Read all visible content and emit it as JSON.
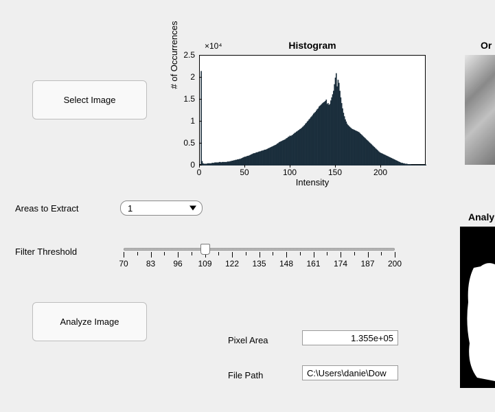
{
  "buttons": {
    "select_image": "Select Image",
    "analyze_image": "Analyze Image"
  },
  "labels": {
    "areas_to_extract": "Areas to Extract",
    "filter_threshold": "Filter Threshold",
    "pixel_area": "Pixel Area",
    "file_path": "File Path"
  },
  "areas_select": {
    "value": "1"
  },
  "filter_slider": {
    "min": 70,
    "max": 200,
    "step_major": 13,
    "value": 109,
    "major_ticks": [
      70,
      83,
      96,
      109,
      122,
      135,
      148,
      161,
      174,
      187,
      200
    ]
  },
  "pixel_area_value": "1.355e+05",
  "file_path_value": "C:\\Users\\danie\\Dow",
  "right_titles": {
    "original": "Or",
    "analyzed": "Analy"
  },
  "histogram": {
    "title": "Histogram",
    "xlabel": "Intensity",
    "ylabel": "# of Occurrences",
    "exponent": "×10⁴",
    "xlim": [
      0,
      250
    ],
    "ylim": [
      0,
      2.5
    ],
    "yticks": [
      0,
      0.5,
      1,
      1.5,
      2,
      2.5
    ],
    "xticks": [
      0,
      50,
      100,
      150,
      200
    ],
    "bar_color": "#1b2e3c",
    "background": "#ffffff",
    "values": [
      0.02,
      2.15,
      0.1,
      0.05,
      0.04,
      0.04,
      0.04,
      0.04,
      0.05,
      0.05,
      0.05,
      0.05,
      0.05,
      0.06,
      0.06,
      0.06,
      0.07,
      0.07,
      0.07,
      0.07,
      0.07,
      0.08,
      0.08,
      0.07,
      0.08,
      0.08,
      0.08,
      0.08,
      0.08,
      0.08,
      0.09,
      0.09,
      0.09,
      0.1,
      0.1,
      0.11,
      0.11,
      0.12,
      0.12,
      0.13,
      0.13,
      0.14,
      0.14,
      0.15,
      0.15,
      0.16,
      0.17,
      0.18,
      0.19,
      0.2,
      0.2,
      0.21,
      0.22,
      0.22,
      0.23,
      0.24,
      0.25,
      0.26,
      0.27,
      0.28,
      0.28,
      0.29,
      0.3,
      0.3,
      0.31,
      0.32,
      0.32,
      0.33,
      0.34,
      0.34,
      0.35,
      0.36,
      0.36,
      0.37,
      0.38,
      0.39,
      0.4,
      0.41,
      0.42,
      0.43,
      0.44,
      0.45,
      0.46,
      0.47,
      0.48,
      0.5,
      0.51,
      0.53,
      0.54,
      0.55,
      0.56,
      0.57,
      0.58,
      0.59,
      0.6,
      0.62,
      0.63,
      0.65,
      0.66,
      0.68,
      0.67,
      0.69,
      0.7,
      0.72,
      0.74,
      0.75,
      0.77,
      0.78,
      0.8,
      0.81,
      0.83,
      0.84,
      0.86,
      0.88,
      0.9,
      0.92,
      0.95,
      0.97,
      1.0,
      1.02,
      1.05,
      1.07,
      1.1,
      1.12,
      1.15,
      1.18,
      1.2,
      1.22,
      1.25,
      1.28,
      1.3,
      1.34,
      1.36,
      1.38,
      1.4,
      1.42,
      1.44,
      1.45,
      1.47,
      1.5,
      1.4,
      1.42,
      1.38,
      1.4,
      1.48,
      1.55,
      1.62,
      1.7,
      1.85,
      2.0,
      2.1,
      1.8,
      1.95,
      1.88,
      1.7,
      1.55,
      1.42,
      1.3,
      1.2,
      1.12,
      1.05,
      1.0,
      0.95,
      0.92,
      0.9,
      0.88,
      0.86,
      0.84,
      0.83,
      0.82,
      0.81,
      0.8,
      0.79,
      0.78,
      0.77,
      0.76,
      0.74,
      0.72,
      0.7,
      0.68,
      0.66,
      0.64,
      0.62,
      0.6,
      0.58,
      0.56,
      0.54,
      0.52,
      0.5,
      0.48,
      0.46,
      0.44,
      0.42,
      0.4,
      0.38,
      0.36,
      0.34,
      0.32,
      0.3,
      0.29,
      0.28,
      0.27,
      0.26,
      0.25,
      0.24,
      0.23,
      0.22,
      0.21,
      0.2,
      0.19,
      0.18,
      0.17,
      0.16,
      0.15,
      0.14,
      0.13,
      0.12,
      0.11,
      0.1,
      0.09,
      0.08,
      0.07,
      0.06,
      0.06,
      0.05,
      0.05,
      0.04,
      0.04,
      0.04,
      0.03,
      0.03,
      0.03,
      0.03,
      0.02,
      0.02,
      0.02,
      0.02,
      0.02,
      0.02,
      0.02,
      0.02,
      0.02,
      0.02,
      0.02,
      0.02,
      0.02,
      0.02,
      0.02,
      0.02,
      0.02
    ]
  }
}
